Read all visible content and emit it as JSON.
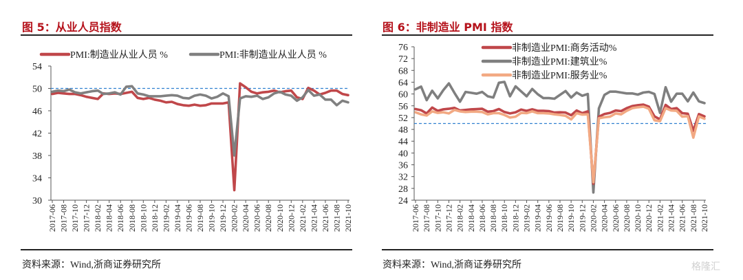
{
  "charts_meta": [
    {
      "title": "图 5：从业人员指数",
      "source": "资料来源：Wind,浙商证券研究所"
    },
    {
      "title": "图 6：非制造业 PMI 指数",
      "source": "资料来源：Wind,浙商证券研究所"
    }
  ],
  "watermark": "格隆汇",
  "chart_data": [
    {
      "type": "line",
      "title": "图 5：从业人员指数",
      "xlabel": "",
      "ylabel": "",
      "ylim": [
        30,
        54
      ],
      "yticks": [
        30,
        34,
        38,
        42,
        46,
        50,
        54
      ],
      "reference_line": 50,
      "legend_position": "top",
      "x": [
        "2017-06",
        "2017-07",
        "2017-08",
        "2017-09",
        "2017-10",
        "2017-11",
        "2017-12",
        "2018-01",
        "2018-02",
        "2018-03",
        "2018-04",
        "2018-05",
        "2018-06",
        "2018-07",
        "2018-08",
        "2018-09",
        "2018-10",
        "2018-11",
        "2018-12",
        "2019-01",
        "2019-02",
        "2019-03",
        "2019-04",
        "2019-05",
        "2019-06",
        "2019-07",
        "2019-08",
        "2019-09",
        "2019-10",
        "2019-11",
        "2019-12",
        "2020-01",
        "2020-02",
        "2020-03",
        "2020-04",
        "2020-05",
        "2020-06",
        "2020-07",
        "2020-08",
        "2020-09",
        "2020-10",
        "2020-11",
        "2020-12",
        "2021-01",
        "2021-02",
        "2021-03",
        "2021-04",
        "2021-05",
        "2021-06",
        "2021-07",
        "2021-08",
        "2021-09",
        "2021-10"
      ],
      "xtick_labels": [
        "2017-06",
        "2017-08",
        "2017-10",
        "2017-12",
        "2018-02",
        "2018-04",
        "2018-06",
        "2018-08",
        "2018-10",
        "2018-12",
        "2019-02",
        "2019-04",
        "2019-06",
        "2019-08",
        "2019-10",
        "2019-12",
        "2020-02",
        "2020-04",
        "2020-06",
        "2020-08",
        "2020-10",
        "2020-12",
        "2021-02",
        "2021-04",
        "2021-06",
        "2021-08",
        "2021-10"
      ],
      "series": [
        {
          "name": "PMI:制造业从业人员 %",
          "color": "#c0474a",
          "values": [
            49.0,
            49.2,
            49.1,
            49.0,
            49.0,
            48.8,
            48.5,
            48.3,
            48.1,
            49.1,
            49.0,
            49.1,
            49.0,
            49.2,
            49.4,
            48.3,
            48.1,
            48.3,
            48.0,
            47.8,
            47.5,
            47.6,
            47.2,
            47.0,
            46.9,
            47.1,
            46.9,
            47.0,
            47.3,
            47.3,
            47.3,
            47.5,
            31.8,
            50.9,
            50.2,
            49.4,
            49.1,
            49.3,
            49.4,
            49.6,
            49.3,
            49.5,
            49.6,
            48.4,
            48.1,
            50.1,
            49.6,
            48.9,
            49.2,
            49.6,
            49.6,
            49.0,
            48.8
          ]
        },
        {
          "name": "PMI:非制造业从业人员 %",
          "color": "#808080",
          "values": [
            49.4,
            49.6,
            49.5,
            49.8,
            49.3,
            49.1,
            49.3,
            49.5,
            49.6,
            49.0,
            49.1,
            49.3,
            48.9,
            50.3,
            50.4,
            49.1,
            48.9,
            48.6,
            48.6,
            48.6,
            48.7,
            48.8,
            48.7,
            48.3,
            48.2,
            48.7,
            48.9,
            48.7,
            48.2,
            48.5,
            49.1,
            48.6,
            38.0,
            48.2,
            48.6,
            48.5,
            48.7,
            48.1,
            48.4,
            49.1,
            49.4,
            48.9,
            48.7,
            47.8,
            48.4,
            49.7,
            48.7,
            48.9,
            48.0,
            48.0,
            47.0,
            47.8,
            47.5
          ]
        }
      ]
    },
    {
      "type": "line",
      "title": "图 6：非制造业 PMI 指数",
      "xlabel": "",
      "ylabel": "",
      "ylim": [
        24,
        76
      ],
      "yticks": [
        24,
        28,
        32,
        36,
        40,
        44,
        48,
        52,
        56,
        60,
        64,
        68,
        72,
        76
      ],
      "reference_line": 50,
      "legend_position": "top-center",
      "x": [
        "2017-06",
        "2017-07",
        "2017-08",
        "2017-09",
        "2017-10",
        "2017-11",
        "2017-12",
        "2018-01",
        "2018-02",
        "2018-03",
        "2018-04",
        "2018-05",
        "2018-06",
        "2018-07",
        "2018-08",
        "2018-09",
        "2018-10",
        "2018-11",
        "2018-12",
        "2019-01",
        "2019-02",
        "2019-03",
        "2019-04",
        "2019-05",
        "2019-06",
        "2019-07",
        "2019-08",
        "2019-09",
        "2019-10",
        "2019-11",
        "2019-12",
        "2020-01",
        "2020-02",
        "2020-03",
        "2020-04",
        "2020-05",
        "2020-06",
        "2020-07",
        "2020-08",
        "2020-09",
        "2020-10",
        "2020-11",
        "2020-12",
        "2021-01",
        "2021-02",
        "2021-03",
        "2021-04",
        "2021-05",
        "2021-06",
        "2021-07",
        "2021-08",
        "2021-09",
        "2021-10"
      ],
      "xtick_labels": [
        "2017-06",
        "2017-08",
        "2017-10",
        "2017-12",
        "2018-02",
        "2018-04",
        "2018-06",
        "2018-08",
        "2018-10",
        "2018-12",
        "2019-02",
        "2019-04",
        "2019-06",
        "2019-08",
        "2019-10",
        "2019-12",
        "2020-02",
        "2020-04",
        "2020-06",
        "2020-08",
        "2020-10",
        "2020-12",
        "2021-02",
        "2021-04",
        "2021-06",
        "2021-08",
        "2021-10"
      ],
      "series": [
        {
          "name": "非制造业PMI:商务活动%",
          "color": "#c0474a",
          "values": [
            54.9,
            54.5,
            53.4,
            55.4,
            54.3,
            54.8,
            55.0,
            55.3,
            54.4,
            54.6,
            54.8,
            54.9,
            55.0,
            54.0,
            54.2,
            54.9,
            53.9,
            53.4,
            53.8,
            54.7,
            54.3,
            54.8,
            54.3,
            54.3,
            54.2,
            53.7,
            53.8,
            53.7,
            52.8,
            54.4,
            53.5,
            54.1,
            29.6,
            52.3,
            53.2,
            53.6,
            54.4,
            54.2,
            55.2,
            55.9,
            56.2,
            56.4,
            55.7,
            52.4,
            51.4,
            56.3,
            54.9,
            55.2,
            53.5,
            53.3,
            47.5,
            53.2,
            52.4
          ]
        },
        {
          "name": "非制造业PMI:建筑业%",
          "color": "#7f7f7f",
          "values": [
            61.6,
            62.5,
            57.9,
            61.1,
            58.5,
            61.3,
            63.6,
            60.4,
            57.4,
            60.7,
            60.4,
            60.1,
            60.7,
            59.2,
            58.8,
            63.8,
            64.1,
            59.2,
            62.6,
            60.9,
            59.2,
            61.7,
            59.9,
            58.6,
            58.6,
            58.4,
            59.7,
            61.0,
            58.8,
            60.5,
            59.4,
            60.0,
            26.6,
            55.1,
            59.7,
            60.8,
            60.8,
            60.5,
            60.2,
            60.2,
            59.8,
            60.5,
            60.7,
            60.0,
            53.6,
            62.3,
            57.4,
            60.1,
            60.1,
            57.5,
            60.5,
            57.5,
            56.9
          ]
        },
        {
          "name": "非制造业PMI:服务业%",
          "color": "#f2a983",
          "values": [
            53.8,
            53.1,
            52.7,
            54.1,
            53.6,
            53.8,
            53.4,
            54.6,
            54.1,
            53.9,
            54.0,
            54.0,
            53.9,
            53.1,
            53.5,
            53.5,
            52.9,
            52.0,
            52.3,
            53.6,
            53.5,
            54.1,
            53.5,
            53.5,
            53.4,
            53.1,
            52.9,
            52.6,
            51.4,
            53.5,
            53.0,
            53.1,
            30.1,
            51.8,
            52.1,
            52.3,
            53.4,
            53.1,
            54.3,
            55.2,
            55.5,
            55.7,
            55.0,
            51.1,
            50.8,
            55.2,
            54.4,
            54.3,
            52.3,
            52.5,
            45.2,
            52.4,
            51.6
          ]
        }
      ]
    }
  ]
}
